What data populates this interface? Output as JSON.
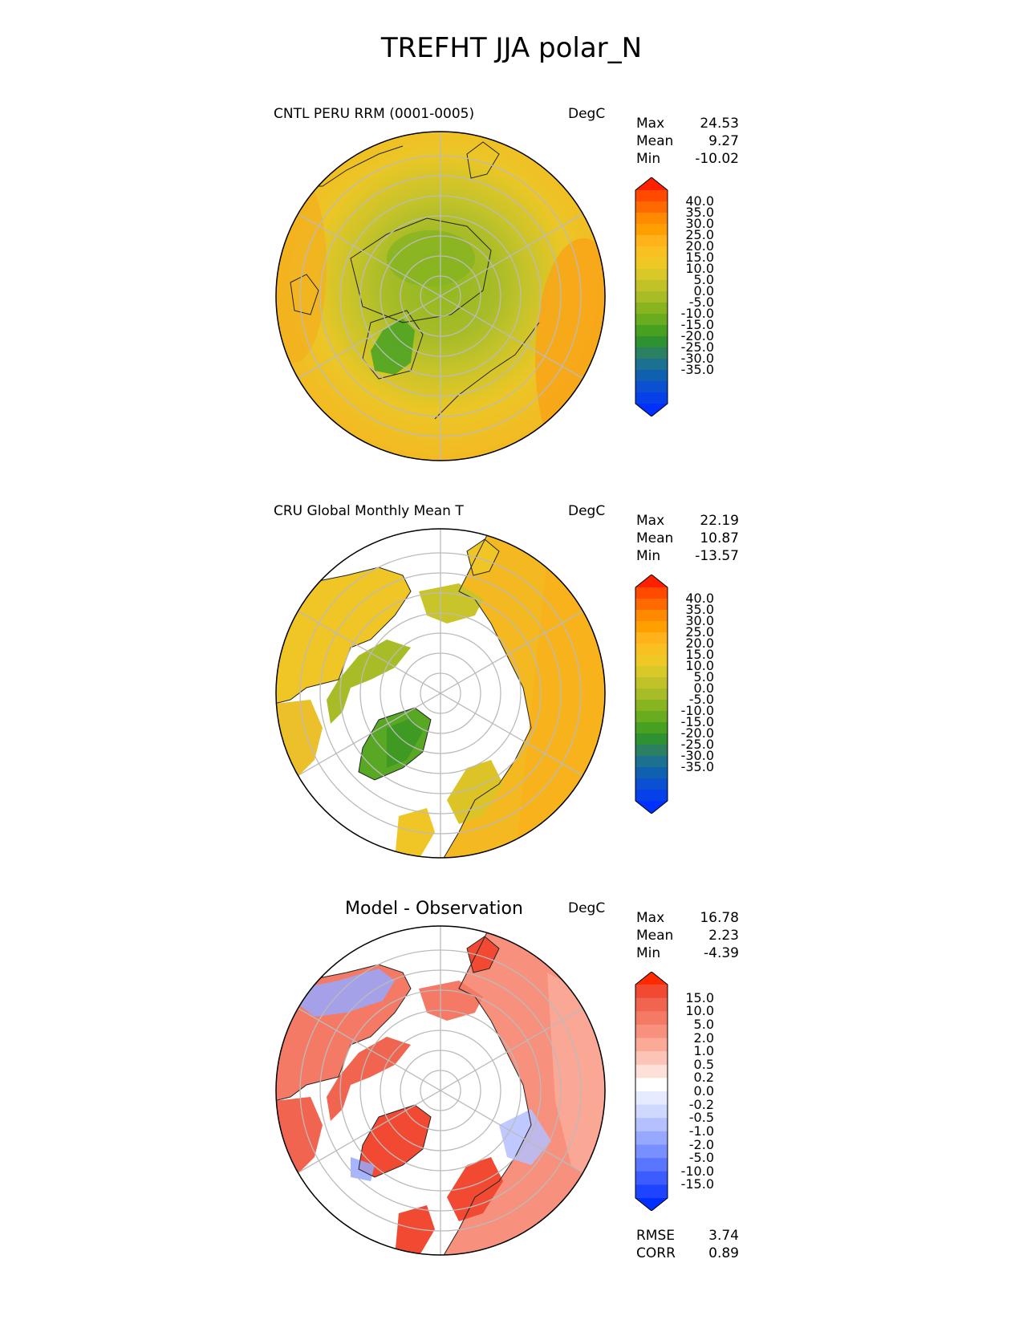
{
  "title": "TREFHT JJA polar_N",
  "panels": [
    {
      "title": "CNTL PERU RRM (0001-0005)",
      "units": "DegC",
      "stats": [
        {
          "label": "Max",
          "value": "24.53"
        },
        {
          "label": "Mean",
          "value": "9.27"
        },
        {
          "label": "Min",
          "value": "-10.02"
        }
      ]
    },
    {
      "title": "CRU Global Monthly Mean T",
      "units": "DegC",
      "stats": [
        {
          "label": "Max",
          "value": "22.19"
        },
        {
          "label": "Mean",
          "value": "10.87"
        },
        {
          "label": "Min",
          "value": "-13.57"
        }
      ]
    },
    {
      "title": "Model - Observation",
      "units": "DegC",
      "stats": [
        {
          "label": "Max",
          "value": "16.78"
        },
        {
          "label": "Mean",
          "value": "2.23"
        },
        {
          "label": "Min",
          "value": "-4.39"
        }
      ],
      "metrics": [
        {
          "label": "RMSE",
          "value": "3.74"
        },
        {
          "label": "CORR",
          "value": "0.89"
        }
      ]
    }
  ],
  "colorbars": {
    "temperature": {
      "labels": [
        "40.0",
        "35.0",
        "30.0",
        "25.0",
        "20.0",
        "15.0",
        "10.0",
        "5.0",
        "0.0",
        "-5.0",
        "-10.0",
        "-15.0",
        "-20.0",
        "-25.0",
        "-30.0",
        "-35.0"
      ],
      "colors_top_to_bottom": [
        "#ff2000",
        "#ff4a00",
        "#ff6a00",
        "#ff8a00",
        "#ffa000",
        "#ffb21a",
        "#f8c020",
        "#f0c826",
        "#d8c828",
        "#c0c228",
        "#a8bc28",
        "#88b420",
        "#6aac20",
        "#48a020",
        "#2e9230",
        "#2a8060",
        "#1c7090",
        "#1060b0",
        "#0a50d0",
        "#0640e8",
        "#0030ff"
      ]
    },
    "difference": {
      "labels": [
        "15.0",
        "10.0",
        "5.0",
        "2.0",
        "1.0",
        "0.5",
        "0.2",
        "0.0",
        "-0.2",
        "-0.5",
        "-1.0",
        "-2.0",
        "-5.0",
        "-10.0",
        "-15.0"
      ],
      "colors_top_to_bottom": [
        "#ff2a00",
        "#f24a32",
        "#f06450",
        "#f47a66",
        "#f7907c",
        "#fbaa98",
        "#fcc4b6",
        "#fde0d8",
        "#ffffff",
        "#e6ebff",
        "#cfd8ff",
        "#b4c0ff",
        "#96a8ff",
        "#7890ff",
        "#5a76ff",
        "#3c5cff",
        "#1e44ff",
        "#0030ff"
      ]
    }
  }
}
